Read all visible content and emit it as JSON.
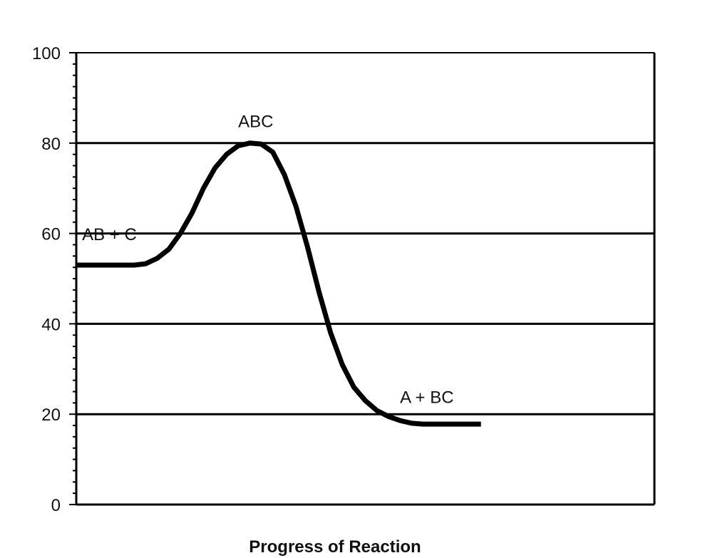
{
  "chart_data": {
    "type": "line",
    "title": "",
    "xlabel": "Progress of Reaction",
    "ylabel": "",
    "ylim": [
      0,
      100
    ],
    "yticks": [
      0,
      20,
      40,
      60,
      80,
      100
    ],
    "grid": "horizontal",
    "legend": "none",
    "series": [
      {
        "color": "#000000",
        "points": [
          [
            0,
            53
          ],
          [
            5,
            53
          ],
          [
            10,
            53
          ],
          [
            12,
            53.3
          ],
          [
            14,
            54.5
          ],
          [
            16,
            56.5
          ],
          [
            18,
            60
          ],
          [
            20,
            64.5
          ],
          [
            22,
            70
          ],
          [
            24,
            74.5
          ],
          [
            26,
            77.5
          ],
          [
            28,
            79.4
          ],
          [
            30,
            80
          ],
          [
            32,
            79.8
          ],
          [
            34,
            78
          ],
          [
            36,
            73
          ],
          [
            38,
            66
          ],
          [
            40,
            57
          ],
          [
            42,
            47
          ],
          [
            44,
            38
          ],
          [
            46,
            31
          ],
          [
            48,
            26
          ],
          [
            50,
            23
          ],
          [
            52,
            20.8
          ],
          [
            54,
            19.5
          ],
          [
            56,
            18.6
          ],
          [
            58,
            18
          ],
          [
            60,
            17.8
          ],
          [
            65,
            17.8
          ],
          [
            70,
            17.8
          ]
        ]
      }
    ],
    "annotations": [
      {
        "text": "AB + C",
        "x": 1,
        "y": 58.5
      },
      {
        "text": "ABC",
        "x": 28,
        "y": 83.5
      },
      {
        "text": "A + BC",
        "x": 56,
        "y": 22.5
      }
    ]
  }
}
